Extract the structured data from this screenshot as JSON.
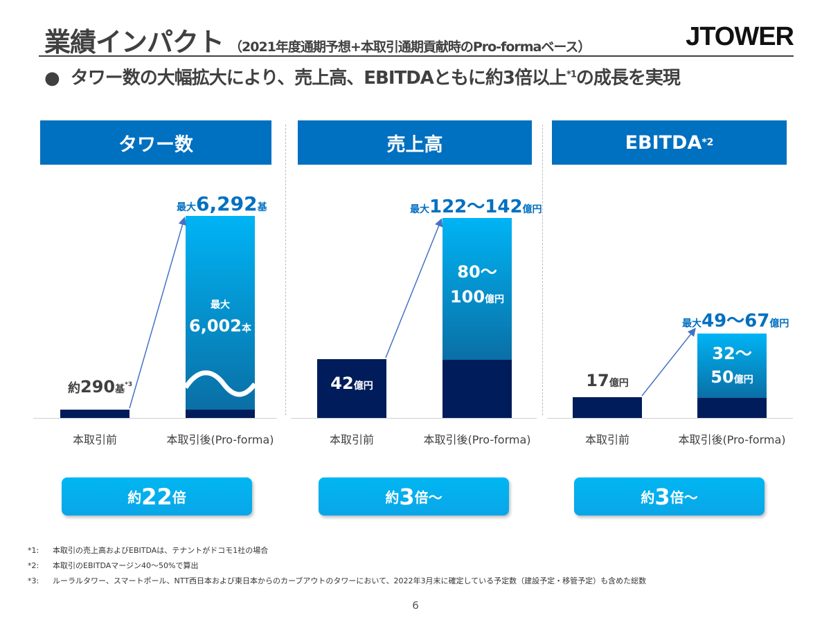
{
  "header": {
    "title": "業績インパクト",
    "subtitle": "（2021年度通期予想+本取引通期貢献時のPro-formaベース）",
    "logo": "JTOWER"
  },
  "lead": {
    "bullet": "●",
    "text": "タワー数の大幅拡大により、売上高、EBITDAともに約3倍以上",
    "sup": "*1",
    "text_end": "の成長を実現"
  },
  "colors": {
    "header_blue": "#0070c0",
    "navy": "#001c5a",
    "bar_light": "#00b4f5",
    "pill": "#00b6f2"
  },
  "chart_data": [
    {
      "type": "bar",
      "title": "タワー数",
      "categories": [
        "本取引前",
        "本取引後(Pro-forma)"
      ],
      "values": [
        290,
        6292
      ],
      "unit": "基",
      "axis_break": true,
      "labels": {
        "before_prefix": "約",
        "before": "290",
        "before_unit": "基",
        "before_sup": "*3",
        "after_prefix": "最大",
        "after": "6,292",
        "after_unit": "基",
        "inner_prefix": "最大",
        "inner": "6,002",
        "inner_unit": "本"
      },
      "multiple": {
        "prefix": "約",
        "value": "22",
        "suffix": "倍"
      }
    },
    {
      "type": "bar",
      "title": "売上高",
      "categories": [
        "本取引前",
        "本取引後(Pro-forma)"
      ],
      "values": [
        42,
        [
          122,
          142
        ]
      ],
      "segments": {
        "base": 42,
        "added": [
          80,
          100
        ]
      },
      "unit": "億円",
      "labels": {
        "before": "42",
        "before_unit": "億円",
        "after_prefix": "最大",
        "after": "122～142",
        "after_unit": "億円",
        "inner_a": "80～",
        "inner_b": "100",
        "inner_unit": "億円"
      },
      "multiple": {
        "prefix": "約",
        "value": "3",
        "suffix": "倍～"
      }
    },
    {
      "type": "bar",
      "title": "EBITDA",
      "title_sup": "*2",
      "categories": [
        "本取引前",
        "本取引後(Pro-forma)"
      ],
      "values": [
        17,
        [
          49,
          67
        ]
      ],
      "segments": {
        "base": 17,
        "added": [
          32,
          50
        ]
      },
      "unit": "億円",
      "labels": {
        "before": "17",
        "before_unit": "億円",
        "after_prefix": "最大",
        "after": "49～67",
        "after_unit": "億円",
        "inner_a": "32～",
        "inner_b": "50",
        "inner_unit": "億円"
      },
      "multiple": {
        "prefix": "約",
        "value": "3",
        "suffix": "倍～"
      }
    }
  ],
  "footnotes": [
    {
      "mark": "*1:",
      "text": "本取引の売上高およびEBITDAは、テナントがドコモ1社の場合"
    },
    {
      "mark": "*2:",
      "text": "本取引のEBITDAマージン40～50%で算出"
    },
    {
      "mark": "*3:",
      "text": "ルーラルタワー、スマートポール、NTT西日本および東日本からのカーブアウトのタワーにおいて、2022年3月末に確定している予定数（建設予定・移管予定）も含めた総数"
    }
  ],
  "page_number": "6"
}
